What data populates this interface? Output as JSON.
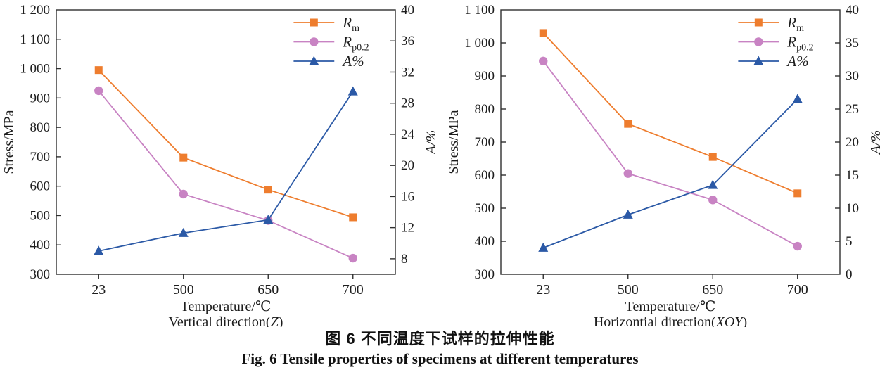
{
  "figure": {
    "caption_zh": "图 6  不同温度下试样的拉伸性能",
    "caption_en": "Fig. 6  Tensile properties of specimens at different temperatures"
  },
  "colors": {
    "rm": "#EE7D2E",
    "rp02": "#C883C3",
    "a_percent": "#2B59A6",
    "axis": "#2f2f2f"
  },
  "chart_data": [
    {
      "type": "line",
      "title": "",
      "xlabel": "Temperature/℃",
      "direction_label": {
        "prefix": "Vertical direction(",
        "italic": "Z",
        "suffix": ")"
      },
      "ylabel_left": "Stress/MPa",
      "ylabel_right": "A/%",
      "categories": [
        "23",
        "500",
        "650",
        "700"
      ],
      "grid": false,
      "legend_position": "top-right-inside",
      "left_axis": {
        "min": 300,
        "max": 1200,
        "ticks": [
          300,
          400,
          500,
          600,
          700,
          800,
          900,
          1000,
          1100,
          1200
        ],
        "tick_labels": [
          "300",
          "400",
          "500",
          "600",
          "700",
          "800",
          "900",
          "1 000",
          "1 100",
          "1 200"
        ]
      },
      "right_axis": {
        "min": 6,
        "max": 40,
        "ticks": [
          8,
          12,
          16,
          20,
          24,
          28,
          32,
          36,
          40
        ]
      },
      "series": [
        {
          "name": "Rm",
          "legend": {
            "main": "R",
            "sub": "m"
          },
          "marker": "square",
          "color": "#EE7D2E",
          "axis": "left",
          "values": [
            995,
            697,
            588,
            494
          ]
        },
        {
          "name": "Rp0.2",
          "legend": {
            "main": "R",
            "sub": "p0.2"
          },
          "marker": "circle",
          "color": "#C883C3",
          "axis": "left",
          "values": [
            925,
            573,
            483,
            355
          ]
        },
        {
          "name": "A%",
          "legend": {
            "main": "A%",
            "sub": ""
          },
          "marker": "triangle",
          "color": "#2B59A6",
          "axis": "right",
          "values": [
            9,
            11.3,
            13,
            29.5
          ]
        }
      ]
    },
    {
      "type": "line",
      "title": "",
      "xlabel": "Temperature/℃",
      "direction_label": {
        "prefix": "Horizontial direction(",
        "italic": "XOY",
        "suffix": ")"
      },
      "ylabel_left": "Stress/MPa",
      "ylabel_right": "A/%",
      "categories": [
        "23",
        "500",
        "650",
        "700"
      ],
      "grid": false,
      "legend_position": "top-right-inside",
      "left_axis": {
        "min": 300,
        "max": 1100,
        "ticks": [
          300,
          400,
          500,
          600,
          700,
          800,
          900,
          1000,
          1100
        ],
        "tick_labels": [
          "300",
          "400",
          "500",
          "600",
          "700",
          "800",
          "900",
          "1 000",
          "1 100"
        ]
      },
      "right_axis": {
        "min": 0,
        "max": 40,
        "ticks": [
          0,
          5,
          10,
          15,
          20,
          25,
          30,
          35,
          40
        ]
      },
      "series": [
        {
          "name": "Rm",
          "legend": {
            "main": "R",
            "sub": "m"
          },
          "marker": "square",
          "color": "#EE7D2E",
          "axis": "left",
          "values": [
            1030,
            755,
            655,
            545
          ]
        },
        {
          "name": "Rp0.2",
          "legend": {
            "main": "R",
            "sub": "p0.2"
          },
          "marker": "circle",
          "color": "#C883C3",
          "axis": "left",
          "values": [
            945,
            605,
            525,
            385
          ]
        },
        {
          "name": "A%",
          "legend": {
            "main": "A%",
            "sub": ""
          },
          "marker": "triangle",
          "color": "#2B59A6",
          "axis": "right",
          "values": [
            4,
            9,
            13.5,
            26.5
          ]
        }
      ]
    }
  ]
}
